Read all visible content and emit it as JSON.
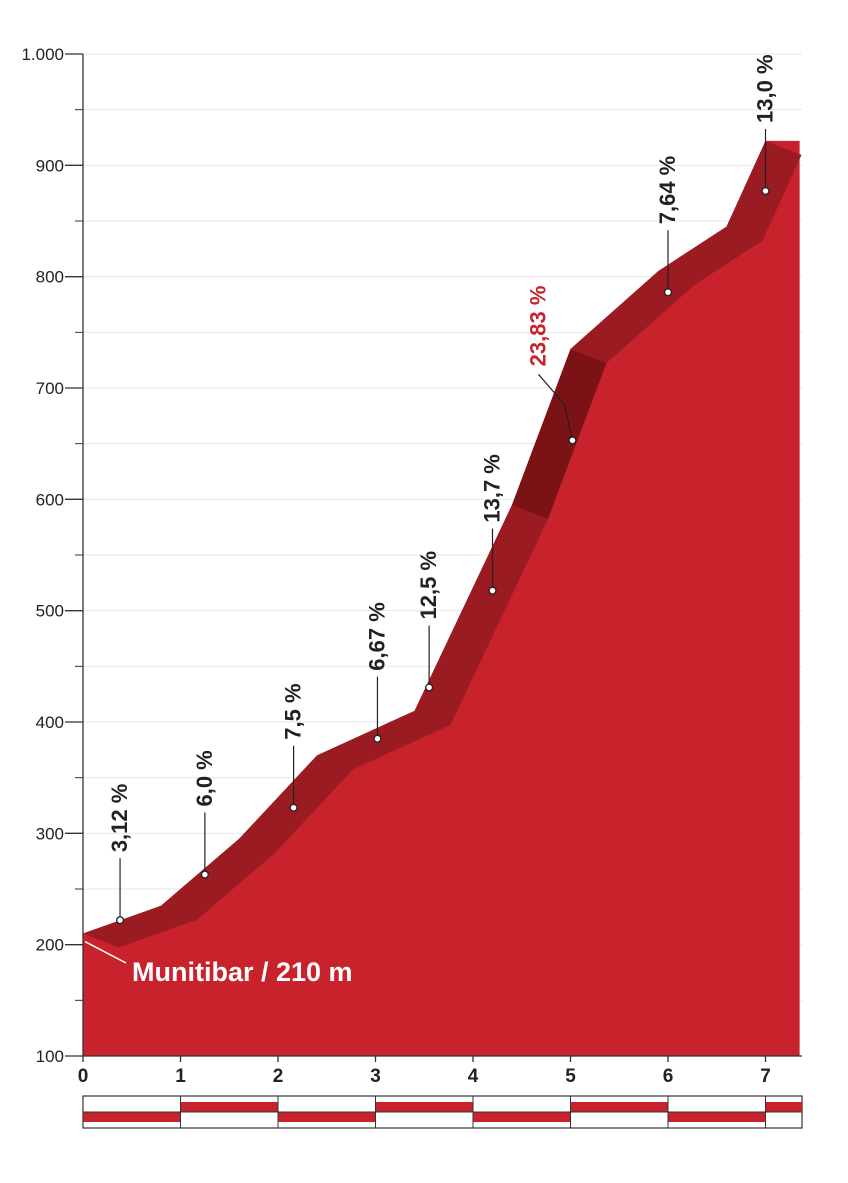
{
  "chart_data": {
    "type": "area",
    "title": "",
    "xlabel": "",
    "ylabel": "",
    "xlim": [
      0,
      7.35
    ],
    "ylim": [
      100,
      1000
    ],
    "y_ticks": [
      100,
      200,
      300,
      400,
      500,
      600,
      700,
      800,
      900,
      1000
    ],
    "y_tick_labels": [
      "100",
      "200",
      "300",
      "400",
      "500",
      "600",
      "700",
      "800",
      "900",
      "1.000"
    ],
    "x_ticks": [
      0,
      1,
      2,
      3,
      4,
      5,
      6,
      7
    ],
    "x_tick_labels": [
      "0",
      "1",
      "2",
      "3",
      "4",
      "5",
      "6",
      "7"
    ],
    "grid": true,
    "start_label": "Munitibar / 210 m",
    "profile": {
      "x": [
        0,
        0.8,
        1.6,
        2.4,
        3.4,
        4.4,
        5.0,
        5.9,
        6.6,
        7.0,
        7.35
      ],
      "y": [
        210,
        235,
        295,
        370,
        410,
        595,
        735,
        805,
        845,
        922,
        922
      ]
    },
    "segments": [
      {
        "label": "3,12 %",
        "x": 0.38,
        "y": 222,
        "highlight": false
      },
      {
        "label": "6,0 %",
        "x": 1.25,
        "y": 263,
        "highlight": false
      },
      {
        "label": "7,5 %",
        "x": 2.16,
        "y": 323,
        "highlight": false
      },
      {
        "label": "6,67 %",
        "x": 3.02,
        "y": 385,
        "highlight": false
      },
      {
        "label": "12,5 %",
        "x": 3.55,
        "y": 431,
        "highlight": false
      },
      {
        "label": "13,7 %",
        "x": 4.2,
        "y": 518,
        "highlight": false
      },
      {
        "label": "23,83 %",
        "x": 5.02,
        "y": 653,
        "highlight": true
      },
      {
        "label": "7,64 %",
        "x": 6.0,
        "y": 786,
        "highlight": false
      },
      {
        "label": "13,0 %",
        "x": 7.0,
        "y": 877,
        "highlight": false
      }
    ],
    "km_bar": {
      "upper_red_km": [
        1,
        3,
        5,
        7
      ],
      "lower_red_km": [
        0,
        2,
        4,
        6
      ]
    },
    "colors": {
      "fill": "#c8232c",
      "top_band": "#9a1b21",
      "steep_band": "#7a1216",
      "highlight_text": "#c8232c",
      "axis": "#333333",
      "grid": "#e6e6e6"
    }
  }
}
